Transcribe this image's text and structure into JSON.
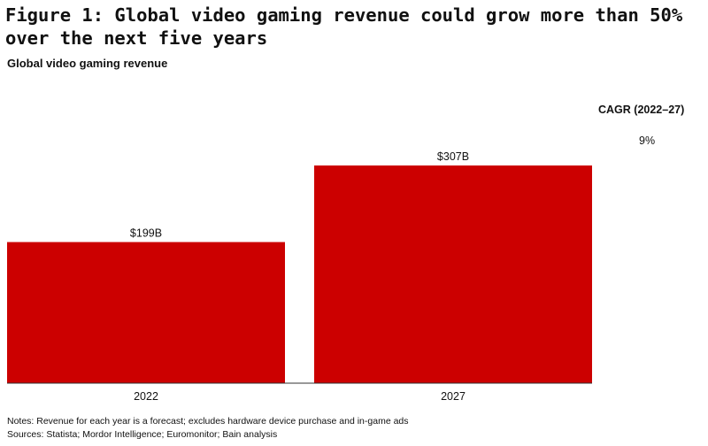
{
  "title": "Figure 1: Global video gaming revenue could grow more than 50% over the next five years",
  "subtitle": "Global video gaming revenue",
  "cagr": {
    "header": "CAGR (2022–27)",
    "value": "9%"
  },
  "notes": [
    "Notes: Revenue for each year is a forecast; excludes hardware device purchase and in-game ads",
    "Sources: Statista; Mordor Intelligence; Euromonitor; Bain analysis"
  ],
  "colors": {
    "bar": "#cc0000",
    "axis": "#333333",
    "text": "#111111"
  },
  "chart_data": {
    "type": "bar",
    "title": "Global video gaming revenue",
    "xlabel": "",
    "ylabel": "",
    "categories": [
      "2022",
      "2027"
    ],
    "values": [
      199,
      307
    ],
    "data_labels": [
      "$199B",
      "$307B"
    ],
    "unit": "B USD",
    "ylim": [
      0,
      307
    ],
    "grid": false,
    "legend": "none"
  }
}
